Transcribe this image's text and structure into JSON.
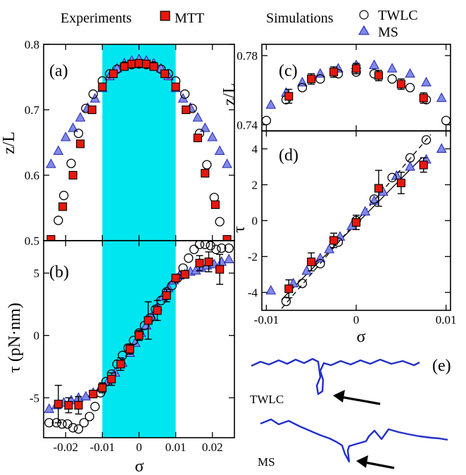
{
  "legend": {
    "experiments_label": "Experiments",
    "mtt_label": "MTT",
    "simulations_label": "Simulations",
    "twlc_label": "TWLC",
    "ms_label": "MS"
  },
  "colors": {
    "mtt_fill": "#e8170c",
    "ms_fill": "#7f89e8",
    "ms_stroke": "#1a1aa8",
    "highlight": "#00e6f0",
    "curve": "#2230c8"
  },
  "snapshots": {
    "panel_label": "(e)",
    "twlc_label": "TWLC",
    "ms_label": "MS",
    "twlc_icon": "arrow-left-icon",
    "ms_icon": "arrow-left-icon"
  },
  "chart_data": [
    {
      "panel": "(a)",
      "type": "scatter",
      "xlabel": "",
      "ylabel": "z/L",
      "xlim": [
        -0.026,
        0.026
      ],
      "ylim": [
        0.5,
        0.8
      ],
      "xticks": [],
      "yticks": [
        "0.5",
        "0.6",
        "0.7",
        "0.8"
      ],
      "yticks_values": [
        0.5,
        0.6,
        0.7,
        0.8
      ],
      "shaded_region": [
        -0.01,
        0.01
      ],
      "series": [
        {
          "name": "MTT",
          "marker": "square",
          "x": [
            -0.024,
            -0.0208,
            -0.018,
            -0.016,
            -0.0128,
            -0.01,
            -0.007,
            -0.004,
            -0.002,
            0.0,
            0.002,
            0.004,
            0.007,
            0.01,
            0.0128,
            0.016,
            0.018,
            0.0208,
            0.024
          ],
          "y": [
            0.502,
            0.552,
            0.6,
            0.648,
            0.7,
            0.735,
            0.755,
            0.766,
            0.77,
            0.771,
            0.77,
            0.766,
            0.755,
            0.735,
            0.7,
            0.657,
            0.603,
            0.555,
            0.502
          ]
        },
        {
          "name": "TWLC",
          "marker": "circle",
          "x": [
            -0.022,
            -0.0205,
            -0.0185,
            -0.0165,
            -0.0145,
            -0.0125,
            -0.01,
            -0.008,
            -0.006,
            -0.004,
            -0.002,
            0.0,
            0.002,
            0.004,
            0.006,
            0.008,
            0.01,
            0.0125,
            0.0145,
            0.0165,
            0.0185,
            0.0205,
            0.022
          ],
          "y": [
            0.531,
            0.569,
            0.618,
            0.664,
            0.702,
            0.724,
            0.744,
            0.755,
            0.762,
            0.767,
            0.769,
            0.77,
            0.769,
            0.767,
            0.762,
            0.755,
            0.744,
            0.724,
            0.702,
            0.664,
            0.616,
            0.566,
            0.529
          ]
        },
        {
          "name": "MS",
          "marker": "triangle",
          "x": [
            -0.024,
            -0.022,
            -0.02,
            -0.018,
            -0.016,
            -0.014,
            -0.012,
            -0.01,
            -0.008,
            -0.006,
            -0.004,
            -0.002,
            0.0,
            0.002,
            0.004,
            0.006,
            0.008,
            0.01,
            0.012,
            0.014,
            0.016,
            0.018,
            0.02,
            0.022,
            0.024
          ],
          "y": [
            0.617,
            0.637,
            0.658,
            0.672,
            0.688,
            0.703,
            0.717,
            0.733,
            0.751,
            0.763,
            0.771,
            0.775,
            0.777,
            0.775,
            0.771,
            0.763,
            0.751,
            0.733,
            0.717,
            0.703,
            0.688,
            0.672,
            0.658,
            0.637,
            0.617
          ]
        }
      ]
    },
    {
      "panel": "(b)",
      "type": "scatter",
      "xlabel": "σ",
      "ylabel": "τ (pN·nm)",
      "xlim": [
        -0.026,
        0.026
      ],
      "ylim": [
        -8.2,
        7.6
      ],
      "xticks": [
        "-0.02",
        "-0.01",
        "0",
        "0.01",
        "0.02"
      ],
      "xticks_values": [
        -0.02,
        -0.01,
        0,
        0.01,
        0.02
      ],
      "yticks": [
        "-5",
        "0",
        "5"
      ],
      "yticks_values": [
        -5,
        0,
        5
      ],
      "shaded_region": [
        -0.01,
        0.01
      ],
      "series": [
        {
          "name": "MTT",
          "marker": "square",
          "x": [
            -0.022,
            -0.0192,
            -0.0165,
            -0.0125,
            -0.01,
            -0.0075,
            -0.005,
            -0.0025,
            0.0,
            0.0025,
            0.005,
            0.0075,
            0.01,
            0.0125,
            0.0165,
            0.019,
            0.022
          ],
          "y": [
            -5.5,
            -5.6,
            -5.6,
            -4.7,
            -4.2,
            -3.5,
            -2.3,
            -1.1,
            0.0,
            1.2,
            2.0,
            3.2,
            4.6,
            4.9,
            5.8,
            5.9,
            5.3
          ],
          "err": [
            1.5,
            0.6,
            0.7,
            0.3,
            0.4,
            0.5,
            0.5,
            0.4,
            0.4,
            1.5,
            0.8,
            0.5,
            0.3,
            0.3,
            0.6,
            0.8,
            1.2
          ]
        },
        {
          "name": "TWLC",
          "marker": "circle",
          "x": [
            -0.0245,
            -0.0225,
            -0.021,
            -0.0195,
            -0.018,
            -0.0165,
            -0.015,
            -0.0135,
            -0.012,
            -0.0105,
            -0.009,
            -0.0075,
            -0.006,
            -0.0045,
            -0.003,
            -0.0015,
            0.0,
            0.0015,
            0.003,
            0.0045,
            0.006,
            0.0075,
            0.009,
            0.0105,
            0.012,
            0.0135,
            0.015,
            0.0165,
            0.018,
            0.0195,
            0.021,
            0.0225,
            0.0245
          ],
          "y": [
            -7.0,
            -7.0,
            -7.1,
            -7.1,
            -7.4,
            -7.5,
            -7.0,
            -6.5,
            -5.7,
            -4.6,
            -3.7,
            -3.1,
            -2.3,
            -1.6,
            -1.0,
            -0.4,
            0.2,
            0.8,
            1.4,
            2.1,
            2.8,
            3.5,
            4.0,
            4.6,
            5.4,
            6.2,
            6.9,
            7.3,
            7.3,
            7.2,
            6.9,
            7.0,
            7.0
          ]
        },
        {
          "name": "MS",
          "marker": "triangle",
          "x": [
            -0.0245,
            -0.0225,
            -0.0205,
            -0.0185,
            -0.0165,
            -0.0145,
            -0.0125,
            -0.0105,
            -0.0085,
            -0.0065,
            -0.0045,
            -0.0025,
            -0.001,
            0.0005,
            0.002,
            0.0035,
            0.005,
            0.0065,
            0.008,
            0.0095,
            0.011,
            0.0125,
            0.014,
            0.0155,
            0.017,
            0.0185,
            0.0205,
            0.0225,
            0.0245
          ],
          "y": [
            -5.9,
            -5.6,
            -5.4,
            -5.2,
            -5.0,
            -4.9,
            -4.6,
            -4.2,
            -3.7,
            -3.0,
            -2.2,
            -1.4,
            -0.6,
            0.2,
            0.8,
            1.5,
            2.3,
            3.1,
            3.8,
            4.4,
            4.8,
            4.9,
            5.1,
            5.2,
            5.4,
            5.6,
            5.7,
            5.9,
            6.1
          ]
        }
      ]
    },
    {
      "panel": "(c)",
      "type": "scatter",
      "xlabel": "",
      "ylabel": "z/L",
      "xlim": [
        -0.0105,
        0.0105
      ],
      "ylim": [
        0.7365,
        0.7865
      ],
      "xticks": [],
      "yticks": [
        "0.74",
        "0.78"
      ],
      "yticks_values": [
        0.74,
        0.78
      ],
      "series": [
        {
          "name": "MTT",
          "marker": "square",
          "x": [
            -0.0075,
            -0.005,
            -0.0025,
            0.0,
            0.0025,
            0.005,
            0.0075
          ],
          "y": [
            0.7565,
            0.7665,
            0.7705,
            0.7725,
            0.7685,
            0.7635,
            0.7555
          ],
          "err": [
            0.004,
            0.003,
            0.003,
            0.003,
            0.003,
            0.003,
            0.003
          ]
        },
        {
          "name": "TWLC",
          "marker": "circle",
          "x": [
            -0.01,
            -0.0078,
            -0.006,
            -0.004,
            -0.002,
            0.0,
            0.002,
            0.004,
            0.006,
            0.0078,
            0.01
          ],
          "y": [
            0.7425,
            0.7545,
            0.7615,
            0.7665,
            0.7695,
            0.7705,
            0.7695,
            0.7665,
            0.7615,
            0.7545,
            0.7425
          ]
        },
        {
          "name": "MS",
          "marker": "triangle",
          "x": [
            -0.0095,
            -0.0078,
            -0.006,
            -0.004,
            -0.002,
            0.0,
            0.002,
            0.004,
            0.006,
            0.0078,
            0.0095
          ],
          "y": [
            0.7515,
            0.7585,
            0.7645,
            0.7695,
            0.7725,
            0.7745,
            0.7745,
            0.7725,
            0.7695,
            0.7645,
            0.7555
          ]
        }
      ]
    },
    {
      "panel": "(d)",
      "type": "scatter",
      "xlabel": "σ",
      "ylabel": "τ",
      "xlim": [
        -0.0105,
        0.0105
      ],
      "ylim": [
        -5.0,
        5.0
      ],
      "xticks": [
        "-0.01",
        "0",
        "0.01"
      ],
      "xticks_values": [
        -0.01,
        0,
        0.01
      ],
      "yticks": [
        "-4",
        "-2",
        "0",
        "2",
        "4"
      ],
      "yticks_values": [
        -4,
        -2,
        0,
        2,
        4
      ],
      "fit_lines": [
        {
          "style": "solid",
          "x": [
            -0.0083,
            0.0073
          ],
          "y": [
            -4.4,
            3.5
          ]
        },
        {
          "style": "dashed",
          "x": [
            -0.0083,
            0.0083
          ],
          "y": [
            -4.9,
            4.8
          ]
        }
      ],
      "series": [
        {
          "name": "MTT",
          "marker": "square",
          "x": [
            -0.0075,
            -0.005,
            -0.0025,
            0.0,
            0.0025,
            0.005,
            0.0075
          ],
          "y": [
            -3.8,
            -2.3,
            -1.1,
            -0.1,
            1.8,
            2.1,
            3.1
          ],
          "err": [
            0.5,
            0.5,
            0.4,
            0.4,
            1.0,
            0.6,
            0.4
          ]
        },
        {
          "name": "TWLC",
          "marker": "circle",
          "x": [
            -0.0078,
            -0.006,
            -0.004,
            -0.002,
            0.0,
            0.002,
            0.004,
            0.006,
            0.0078
          ],
          "y": [
            -4.5,
            -3.5,
            -2.4,
            -1.2,
            0.0,
            1.2,
            2.4,
            3.5,
            4.5
          ]
        },
        {
          "name": "MS",
          "marker": "triangle",
          "x": [
            -0.0095,
            -0.007,
            -0.0055,
            -0.004,
            -0.003,
            -0.0018,
            -0.0005,
            0.001,
            0.002,
            0.003,
            0.0045,
            0.006,
            0.0078,
            0.0095
          ],
          "y": [
            -3.9,
            -3.5,
            -2.8,
            -2.1,
            -1.6,
            -0.9,
            -0.3,
            0.5,
            1.1,
            1.6,
            2.5,
            3.0,
            3.4,
            4.0
          ]
        }
      ]
    }
  ]
}
